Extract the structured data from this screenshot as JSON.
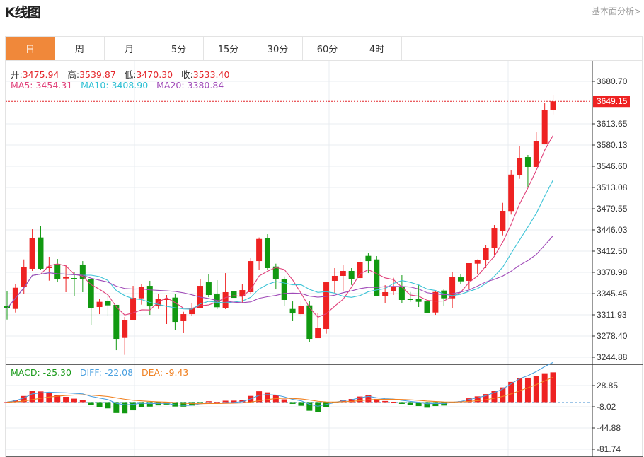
{
  "header": {
    "title": "K线图",
    "link": "基本面分析>"
  },
  "tabs": [
    {
      "label": "日",
      "active": true
    },
    {
      "label": "周"
    },
    {
      "label": "月"
    },
    {
      "label": "5分"
    },
    {
      "label": "15分"
    },
    {
      "label": "30分"
    },
    {
      "label": "60分"
    },
    {
      "label": "4时"
    }
  ],
  "ohlc_info": {
    "open_label": "开:",
    "open": "3475.94",
    "high_label": "高:",
    "high": "3539.87",
    "low_label": "低:",
    "low": "3470.30",
    "close_label": "收:",
    "close": "3533.40"
  },
  "ma_info": {
    "ma5": "MA5: 3454.31",
    "ma10": "MA10: 3408.90",
    "ma20": "MA20: 3380.84"
  },
  "macd_info": {
    "macd": "MACD: -25.30",
    "diff": "DIFF: -22.08",
    "dea": "DEA: -9.43"
  },
  "colors": {
    "up": "#ee2222",
    "down": "#119911",
    "ma5": "#e0407a",
    "ma10": "#3cc3d6",
    "ma20": "#a04ab8",
    "diff": "#4aa0e0",
    "dea": "#f08020",
    "accent": "#f0883a"
  },
  "chart_data": {
    "type": "candlestick",
    "price_axis_ticks": [
      "3680.70",
      "3613.65",
      "3580.13",
      "3546.60",
      "3513.08",
      "3479.55",
      "3446.03",
      "3412.50",
      "3378.98",
      "3345.45",
      "3311.93",
      "3278.40",
      "3244.88"
    ],
    "current_price": "3649.15",
    "macd_axis_ticks": [
      "28.85",
      "-8.02",
      "-44.88",
      "-81.74"
    ],
    "ohlc": [
      [
        3325.7,
        3349.1,
        3304.4,
        3322.0
      ],
      [
        3321.2,
        3360.3,
        3315.6,
        3354.7
      ],
      [
        3356.6,
        3399.4,
        3345.4,
        3386.8
      ],
      [
        3384.6,
        3447.1,
        3381.2,
        3432.9
      ],
      [
        3434.1,
        3451.6,
        3382.7,
        3384.6
      ],
      [
        3385.7,
        3403.6,
        3365.9,
        3388.2
      ],
      [
        3392.4,
        3400.2,
        3363.3,
        3368.9
      ],
      [
        3369.3,
        3390.2,
        3347.7,
        3371.2
      ],
      [
        3370.0,
        3379.0,
        3341.0,
        3368.1
      ],
      [
        3391.3,
        3396.8,
        3347.7,
        3367.8
      ],
      [
        3367.8,
        3370.0,
        3296.3,
        3322.0
      ],
      [
        3324.2,
        3336.8,
        3313.0,
        3332.4
      ],
      [
        3334.3,
        3345.4,
        3310.0,
        3326.8
      ],
      [
        3327.6,
        3327.6,
        3256.0,
        3273.9
      ],
      [
        3275.4,
        3308.6,
        3248.6,
        3303.0
      ],
      [
        3303.0,
        3357.7,
        3303.0,
        3338.7
      ],
      [
        3338.0,
        3360.3,
        3327.9,
        3356.6
      ],
      [
        3357.7,
        3365.6,
        3311.9,
        3325.3
      ],
      [
        3325.3,
        3345.4,
        3321.2,
        3336.8
      ],
      [
        3335.4,
        3343.2,
        3297.4,
        3336.8
      ],
      [
        3339.1,
        3345.4,
        3287.7,
        3300.7
      ],
      [
        3301.9,
        3316.7,
        3282.9,
        3313.0
      ],
      [
        3313.0,
        3330.9,
        3310.0,
        3323.1
      ],
      [
        3323.1,
        3368.9,
        3322.0,
        3357.7
      ],
      [
        3363.3,
        3375.6,
        3339.8,
        3343.2
      ],
      [
        3344.3,
        3366.7,
        3320.9,
        3323.9
      ],
      [
        3323.1,
        3377.8,
        3320.9,
        3347.7
      ],
      [
        3348.8,
        3353.3,
        3310.8,
        3338.7
      ],
      [
        3341.0,
        3361.1,
        3330.9,
        3351.0
      ],
      [
        3347.7,
        3401.3,
        3344.3,
        3396.8
      ],
      [
        3396.8,
        3434.1,
        3383.4,
        3431.8
      ],
      [
        3432.9,
        3439.3,
        3382.3,
        3385.7
      ],
      [
        3388.2,
        3392.7,
        3352.1,
        3367.8
      ],
      [
        3367.8,
        3372.6,
        3325.7,
        3335.4
      ],
      [
        3321.2,
        3333.1,
        3301.9,
        3314.1
      ],
      [
        3313.0,
        3333.5,
        3308.6,
        3326.4
      ],
      [
        3326.8,
        3333.1,
        3269.4,
        3273.9
      ],
      [
        3275.0,
        3314.5,
        3275.0,
        3290.7
      ],
      [
        3289.6,
        3363.3,
        3282.1,
        3363.3
      ],
      [
        3365.6,
        3385.7,
        3346.6,
        3373.4
      ],
      [
        3373.4,
        3391.3,
        3349.9,
        3381.2
      ],
      [
        3381.2,
        3385.7,
        3359.2,
        3368.9
      ],
      [
        3370.0,
        3402.4,
        3365.6,
        3395.7
      ],
      [
        3405.0,
        3409.1,
        3377.8,
        3396.8
      ],
      [
        3399.4,
        3404.7,
        3341.0,
        3342.1
      ],
      [
        3342.1,
        3358.8,
        3330.9,
        3347.7
      ],
      [
        3348.8,
        3370.4,
        3343.2,
        3355.8
      ],
      [
        3356.6,
        3374.5,
        3330.9,
        3335.4
      ],
      [
        3336.8,
        3348.0,
        3332.4,
        3335.4
      ],
      [
        3337.6,
        3358.8,
        3324.2,
        3332.4
      ],
      [
        3333.1,
        3338.7,
        3315.3,
        3315.3
      ],
      [
        3315.6,
        3350.3,
        3311.9,
        3348.0
      ],
      [
        3350.3,
        3352.1,
        3325.7,
        3338.0
      ],
      [
        3338.0,
        3379.0,
        3322.0,
        3371.5
      ],
      [
        3371.1,
        3375.6,
        3360.3,
        3364.8
      ],
      [
        3365.6,
        3393.5,
        3353.3,
        3393.5
      ],
      [
        3392.7,
        3399.4,
        3375.6,
        3398.0
      ],
      [
        3398.3,
        3422.5,
        3385.7,
        3417.0
      ],
      [
        3417.3,
        3453.8,
        3406.1,
        3448.2
      ],
      [
        3444.9,
        3488.8,
        3437.4,
        3476.2
      ],
      [
        3475.94,
        3539.87,
        3470.3,
        3533.4
      ],
      [
        3532.1,
        3578.2,
        3526.8,
        3558.9
      ],
      [
        3561.1,
        3564.5,
        3513.1,
        3545.5
      ],
      [
        3545.5,
        3600.2,
        3545.5,
        3586.8
      ],
      [
        3581.2,
        3646.4,
        3581.2,
        3636.0
      ],
      [
        3635.2,
        3659.5,
        3628.5,
        3649.15
      ]
    ],
    "ma_periods": [
      5,
      10,
      20
    ],
    "macd_params": [
      12,
      26,
      9
    ],
    "grid": true
  }
}
